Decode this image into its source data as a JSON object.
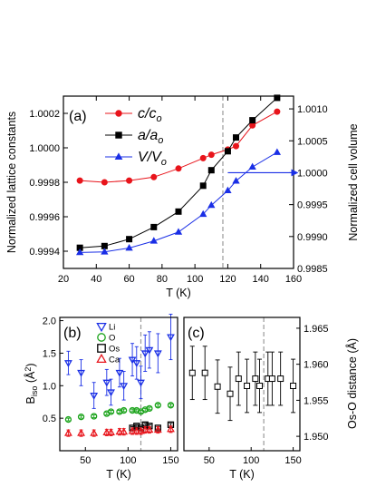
{
  "chart_data": [
    {
      "id": "a",
      "type": "line",
      "panel_label": "(a)",
      "xlabel": "T (K)",
      "ylabel": "Normalized lattice constants",
      "y2label": "Normalized cell volume",
      "xlim": [
        20,
        160
      ],
      "ylim": [
        0.9993,
        1.0003
      ],
      "y2lim": [
        0.9985,
        1.0012
      ],
      "x_ticks": [
        20,
        40,
        60,
        80,
        100,
        120,
        140,
        160
      ],
      "y_ticks": [
        0.9994,
        0.9996,
        0.9998,
        1.0,
        1.0002
      ],
      "y_tick_labels": [
        "0.9994",
        "0.9996",
        "0.9998",
        "1.0000",
        "1.0002"
      ],
      "y2_ticks": [
        0.9985,
        0.999,
        0.9995,
        1.0,
        1.0005,
        1.001
      ],
      "y2_tick_labels": [
        "0.9985",
        "0.9990",
        "0.9995",
        "1.0000",
        "1.0005",
        "1.0010"
      ],
      "vline_x": 117,
      "arrow": {
        "x_from": 120,
        "x_to": 158,
        "y2": 1.0
      },
      "legend_position": "top-center",
      "series": [
        {
          "name_main": "c/c",
          "name_sub": "o",
          "color": "#e8141b",
          "marker": "circle",
          "axis": "left",
          "x": [
            30,
            45,
            60,
            75,
            90,
            105,
            110,
            120,
            125,
            135,
            150
          ],
          "y": [
            0.99981,
            0.9998,
            0.99981,
            0.99983,
            0.99988,
            0.99994,
            0.99996,
            0.99999,
            1.00001,
            1.00013,
            1.00021
          ]
        },
        {
          "name_main": "a/a",
          "name_sub": "o",
          "color": "#000000",
          "marker": "square",
          "axis": "left",
          "x": [
            30,
            45,
            60,
            75,
            90,
            105,
            110,
            120,
            125,
            135,
            150
          ],
          "y": [
            0.99942,
            0.99943,
            0.99947,
            0.99954,
            0.99963,
            0.99978,
            0.99987,
            0.99998,
            1.00006,
            1.00016,
            1.00029
          ]
        },
        {
          "name_main": "V/V",
          "name_sub": "o",
          "color": "#1a2fe6",
          "marker": "triangle",
          "axis": "right",
          "x": [
            30,
            45,
            60,
            75,
            90,
            105,
            110,
            120,
            125,
            135,
            150
          ],
          "y": [
            0.99875,
            0.99876,
            0.99882,
            0.99893,
            0.99907,
            0.99935,
            0.99949,
            0.99972,
            0.99987,
            1.00009,
            1.00032
          ]
        }
      ]
    },
    {
      "id": "b",
      "type": "scatter",
      "panel_label": "(b)",
      "xlabel": "T (K)",
      "ylabel_main": "B",
      "ylabel_sub": "iso",
      "ylabel_unit": " (Å",
      "ylabel_sup": "2",
      "ylabel_end": ")",
      "xlim": [
        20,
        158
      ],
      "ylim": [
        0.0,
        2.05
      ],
      "x_ticks": [
        50,
        100,
        150
      ],
      "y_ticks": [
        0.5,
        1.0,
        1.5,
        2.0
      ],
      "y_tick_labels": [
        "0.5",
        "1.0",
        "1.5",
        "2.0"
      ],
      "vline_x": 115,
      "legend_position": "top-left",
      "series": [
        {
          "name": "Li",
          "color": "#1a2fe6",
          "marker": "triangle-down",
          "x": [
            30,
            45,
            60,
            75,
            80,
            90,
            95,
            105,
            110,
            115,
            120,
            125,
            135,
            150
          ],
          "y": [
            1.35,
            1.2,
            0.85,
            1.05,
            0.9,
            1.2,
            1.0,
            1.4,
            1.35,
            1.05,
            1.5,
            1.55,
            1.5,
            1.75
          ],
          "err": [
            0.18,
            0.2,
            0.2,
            0.2,
            0.2,
            0.22,
            0.22,
            0.25,
            0.25,
            0.25,
            0.28,
            0.28,
            0.3,
            0.35
          ]
        },
        {
          "name": "O",
          "color": "#1aa31a",
          "marker": "circle",
          "x": [
            30,
            45,
            60,
            75,
            80,
            90,
            95,
            105,
            110,
            115,
            120,
            125,
            135,
            150
          ],
          "y": [
            0.48,
            0.52,
            0.53,
            0.57,
            0.6,
            0.6,
            0.62,
            0.62,
            0.62,
            0.6,
            0.63,
            0.65,
            0.7,
            0.7
          ],
          "err": [
            0.02,
            0.02,
            0.02,
            0.02,
            0.02,
            0.02,
            0.02,
            0.02,
            0.02,
            0.02,
            0.02,
            0.02,
            0.02,
            0.02
          ]
        },
        {
          "name": "Os",
          "color": "#000000",
          "marker": "square",
          "x": [
            105,
            110,
            115,
            120,
            125,
            135,
            150
          ],
          "y": [
            0.35,
            0.38,
            0.35,
            0.4,
            0.38,
            0.35,
            0.4
          ],
          "err": [
            0.02,
            0.02,
            0.02,
            0.02,
            0.02,
            0.02,
            0.02
          ]
        },
        {
          "name": "Ca",
          "color": "#e8141b",
          "marker": "triangle",
          "x": [
            30,
            45,
            60,
            75,
            80,
            90,
            95,
            105,
            110,
            115,
            120,
            125,
            135,
            150
          ],
          "y": [
            0.27,
            0.27,
            0.27,
            0.28,
            0.28,
            0.29,
            0.29,
            0.3,
            0.3,
            0.3,
            0.32,
            0.32,
            0.32,
            0.33
          ],
          "err": [
            0.05,
            0.05,
            0.05,
            0.05,
            0.05,
            0.05,
            0.05,
            0.05,
            0.05,
            0.05,
            0.05,
            0.05,
            0.05,
            0.05
          ]
        }
      ]
    },
    {
      "id": "c",
      "type": "scatter",
      "panel_label": "(c)",
      "xlabel": "T (K)",
      "y2label": "Os-O distance (Å)",
      "xlim": [
        20,
        158
      ],
      "y2lim": [
        1.948,
        1.9665
      ],
      "x_ticks": [
        50,
        100,
        150
      ],
      "y2_ticks": [
        1.95,
        1.955,
        1.96,
        1.965
      ],
      "y2_tick_labels": [
        "1.950",
        "1.955",
        "1.960",
        "1.965"
      ],
      "vline_x": 115,
      "series": [
        {
          "name": "Os-O",
          "color": "#000000",
          "marker": "square",
          "x": [
            30,
            45,
            60,
            75,
            85,
            95,
            105,
            110,
            120,
            125,
            135,
            150
          ],
          "y": [
            1.9588,
            1.9588,
            1.9569,
            1.9559,
            1.958,
            1.957,
            1.958,
            1.957,
            1.958,
            1.958,
            1.958,
            1.957
          ],
          "err": [
            0.0037,
            0.0037,
            0.0037,
            0.0037,
            0.0037,
            0.0037,
            0.0037,
            0.0037,
            0.0037,
            0.0037,
            0.0037,
            0.0037
          ]
        }
      ]
    }
  ]
}
